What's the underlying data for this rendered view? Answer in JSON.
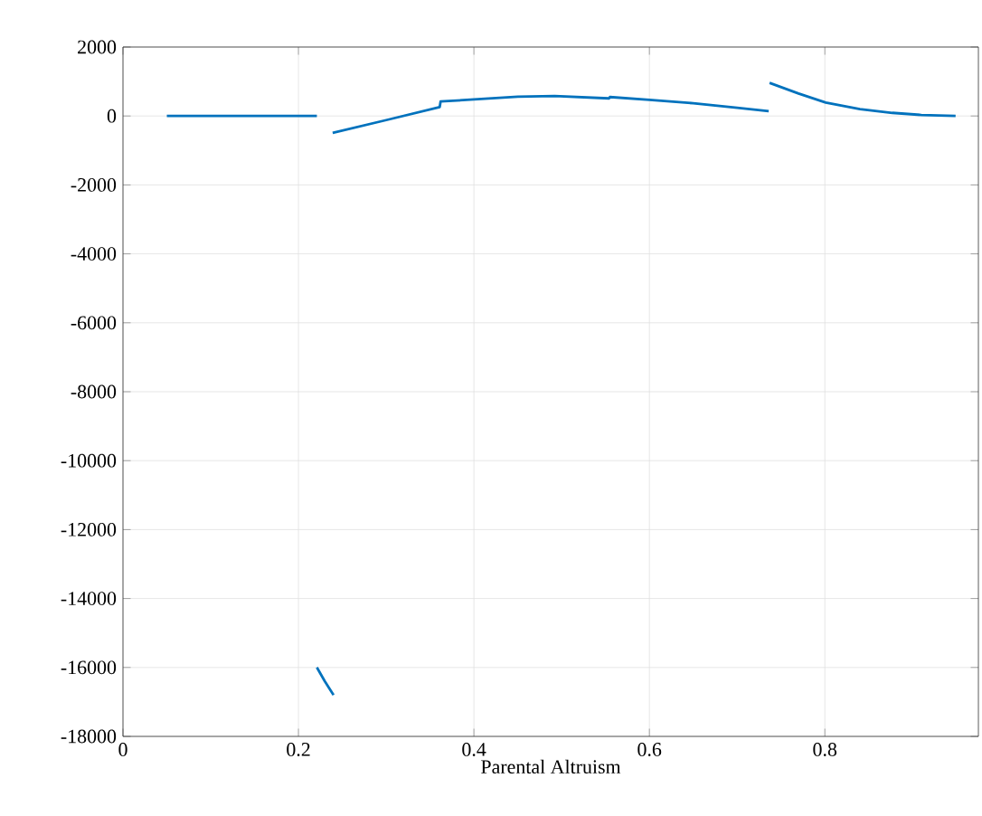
{
  "chart_data": {
    "type": "line",
    "xlabel": "Parental Altruism",
    "xlim": [
      0,
      0.975
    ],
    "ylim": [
      -18000,
      2000
    ],
    "xticks": [
      0,
      0.2,
      0.4,
      0.6,
      0.8
    ],
    "yticks": [
      -18000,
      -16000,
      -14000,
      -12000,
      -10000,
      -8000,
      -6000,
      -4000,
      -2000,
      0,
      2000
    ],
    "grid": true,
    "marker": "none",
    "line_style": "solid",
    "series": [
      {
        "color": "#0072bd",
        "x": [
          0.05,
          0.221,
          null,
          0.239,
          0.3,
          0.361,
          0.362,
          0.4,
          0.45,
          0.492,
          0.554,
          0.555,
          0.6,
          0.65,
          0.7,
          0.736,
          null,
          0.737,
          0.77,
          0.801,
          0.84,
          0.877,
          0.91,
          0.949
        ],
        "values": [
          0,
          0,
          null,
          -490,
          -120,
          260,
          420,
          480,
          560,
          580,
          510,
          550,
          470,
          370,
          240,
          140,
          null,
          960,
          650,
          390,
          200,
          90,
          30,
          0
        ]
      },
      {
        "color": "#0072bd",
        "x": [
          0.221,
          0.23,
          0.24
        ],
        "values": [
          -16000,
          -16400,
          -16800
        ]
      }
    ]
  }
}
